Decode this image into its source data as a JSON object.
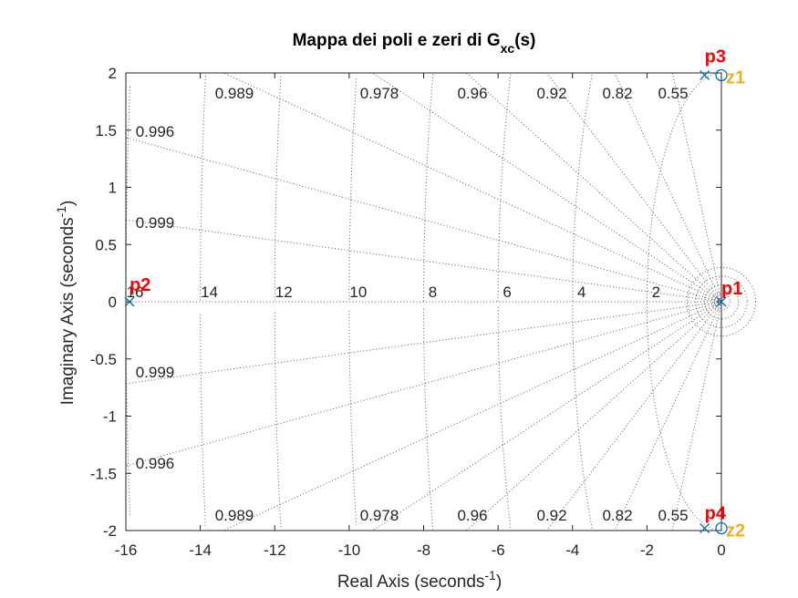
{
  "chart_data": {
    "type": "scatter",
    "title": {
      "main": "Mappa dei poli e zeri di G",
      "sub": "xc",
      "suffix": "(s)"
    },
    "xlabel": {
      "main": "Real Axis (seconds",
      "sup": "-1",
      "end": ")"
    },
    "ylabel": {
      "main": "Imaginary Axis (seconds",
      "sup": "-1",
      "end": ")"
    },
    "xlim": [
      -16,
      0
    ],
    "ylim": [
      -2,
      2
    ],
    "xticks": [
      "-16",
      "-14",
      "-12",
      "-10",
      "-8",
      "-6",
      "-4",
      "-2",
      "0"
    ],
    "yticks": [
      "-2",
      "-1.5",
      "-1",
      "-0.5",
      "0",
      "0.5",
      "1",
      "1.5",
      "2"
    ],
    "grid": true,
    "damping_grid": {
      "values": [
        0.55,
        0.82,
        0.92,
        0.96,
        0.978,
        0.989,
        0.996,
        0.999
      ],
      "upper_labels": [
        "0.55",
        "0.82",
        "0.92",
        "0.96",
        "0.978",
        "0.989"
      ],
      "side_labels": [
        "0.996",
        "0.999"
      ]
    },
    "frequency_grid": {
      "values": [
        2,
        4,
        6,
        8,
        10,
        12,
        14,
        16
      ],
      "labels": [
        "2",
        "4",
        "6",
        "8",
        "10",
        "12",
        "14",
        "16"
      ]
    },
    "poles": [
      {
        "name": "p1",
        "x": 0,
        "y": 0
      },
      {
        "name": "p2",
        "x": -15.9,
        "y": 0
      },
      {
        "name": "p3",
        "x": -0.45,
        "y": 1.98
      },
      {
        "name": "p4",
        "x": -0.45,
        "y": -1.98
      }
    ],
    "zeros": [
      {
        "name": "z1",
        "x": 0,
        "y": 1.98
      },
      {
        "name": "z2",
        "x": 0,
        "y": -1.98
      }
    ]
  },
  "colors": {
    "marker": "#0072bd",
    "pole_label": "#ff0000",
    "zero_label": "#edb120",
    "grid": "#262626",
    "axes": "#262626"
  }
}
